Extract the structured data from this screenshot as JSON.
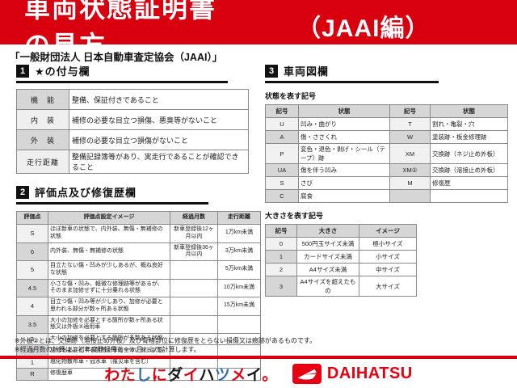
{
  "banner": {
    "title": "車両状態証明書の見方",
    "edition": "（JAAI編）"
  },
  "subtitle": "「一般財団法人 日本自動車査定協会（JAAI）」",
  "section1": {
    "num": "1",
    "title": "★の付与欄",
    "table": {
      "rows": [
        [
          "機　能",
          "整備、保証付きであること"
        ],
        [
          "内　装",
          "補修の必要な目立つ損傷、悪臭等がないこと"
        ],
        [
          "外　装",
          "補修の必要な目立つ損傷がないこと"
        ],
        [
          "走行距離",
          "整備記録簿等があり、実走行であることが確認できること"
        ]
      ]
    }
  },
  "section2": {
    "num": "2",
    "title": "評価点及び修復歴欄",
    "table": {
      "header": [
        "評価点",
        "評価点設定イメージ",
        "経過月数",
        "走行距離"
      ],
      "rows": [
        [
          "S",
          "ほぼ新車の状態で、内外装、無傷・無補修の状態",
          "新車登録後12ヶ月以内",
          "1万km未満"
        ],
        [
          "6",
          "内外装、無傷・無補修の状態",
          "新車登録後36ヶ月以内",
          "3万km未満"
        ],
        [
          "5",
          "目立たない傷・凹みが少しあるが、概ね良好な状態",
          "",
          "5万km未満"
        ],
        [
          "4.5",
          "小さな傷・凹み、軽微な修理跡等があるが、そのまま加修せずに十分乗れる状態",
          "",
          "10万km未満"
        ],
        [
          "4",
          "目立つ傷・凹み等が少しあり、加修が必要と思われる部分が数ヶ所ある状態",
          "",
          "15万km未満"
        ],
        [
          "3.5",
          "大小の加修を必要とする箇所が数ヶ所ある状態又は外板②適用車",
          "",
          ""
        ],
        [
          "3",
          "大小の加修を必要とする箇所が多数ある状態",
          "",
          ""
        ],
        [
          "2",
          "加修を必要とする箇所が車両全体にある状態",
          "",
          ""
        ],
        [
          "1",
          "塩化物散布車・冠水車（罹災車を含む）",
          "",
          ""
        ],
        [
          "R",
          "修復歴車",
          "",
          ""
        ]
      ]
    }
  },
  "section3": {
    "num": "3",
    "title": "車両図欄",
    "condition": {
      "label": "状態を表す記号",
      "header": [
        "記号",
        "状態",
        "記号",
        "状態"
      ],
      "rows": [
        [
          "U",
          "凹み・曲がり",
          "T",
          "割れ・亀裂・穴"
        ],
        [
          "A",
          "傷・ささくれ",
          "W",
          "塗装跡・板金修理跡"
        ],
        [
          "P",
          "変色・退色・剥げ・シール（テープ）跡",
          "XM",
          "交換跡（ネジ止め外板）"
        ],
        [
          "UA",
          "傷を伴う凹み",
          "XM②",
          "交換跡（溶接止め外板）"
        ],
        [
          "S",
          "さび",
          "M",
          "修復歴"
        ],
        [
          "C",
          "腐食",
          "",
          ""
        ]
      ]
    },
    "size": {
      "label": "大きさを表す記号",
      "header": [
        "記号",
        "大きさ",
        "イメージ"
      ],
      "rows": [
        [
          "0",
          "500円玉サイズ未満",
          "極小サイズ"
        ],
        [
          "1",
          "カードサイズ未満",
          "小サイズ"
        ],
        [
          "2",
          "A4サイズ未満",
          "中サイズ"
        ],
        [
          "3",
          "A4サイズを超えたもの",
          "大サイズ"
        ]
      ]
    }
  },
  "notes": [
    "※外板②とは、交換跡（溶接止め外板）及び骨格部位に修復歴をとらない損傷又は痕跡があるものです。",
    "※経過月数の計算は、初年度登録月を一ヶ月として計算します。"
  ],
  "footer": {
    "slogan": [
      [
        "わ",
        "#e60012"
      ],
      [
        "た",
        "#d01818"
      ],
      [
        "し",
        "#2f6db5"
      ],
      [
        "に",
        "#e60012"
      ],
      [
        "ダ",
        "#1a1a1a"
      ],
      [
        "イ",
        "#e60012"
      ],
      [
        "ハ",
        "#1a1a1a"
      ],
      [
        "ツ",
        "#2f6db5"
      ],
      [
        "メ",
        "#e60012"
      ],
      [
        "イ",
        "#1a1a1a"
      ],
      [
        "。",
        "#e60012"
      ]
    ],
    "logo_text": "DAIHATSU"
  },
  "colors": {
    "banner_red": "#d8000f",
    "logo_red": "#e60012"
  }
}
